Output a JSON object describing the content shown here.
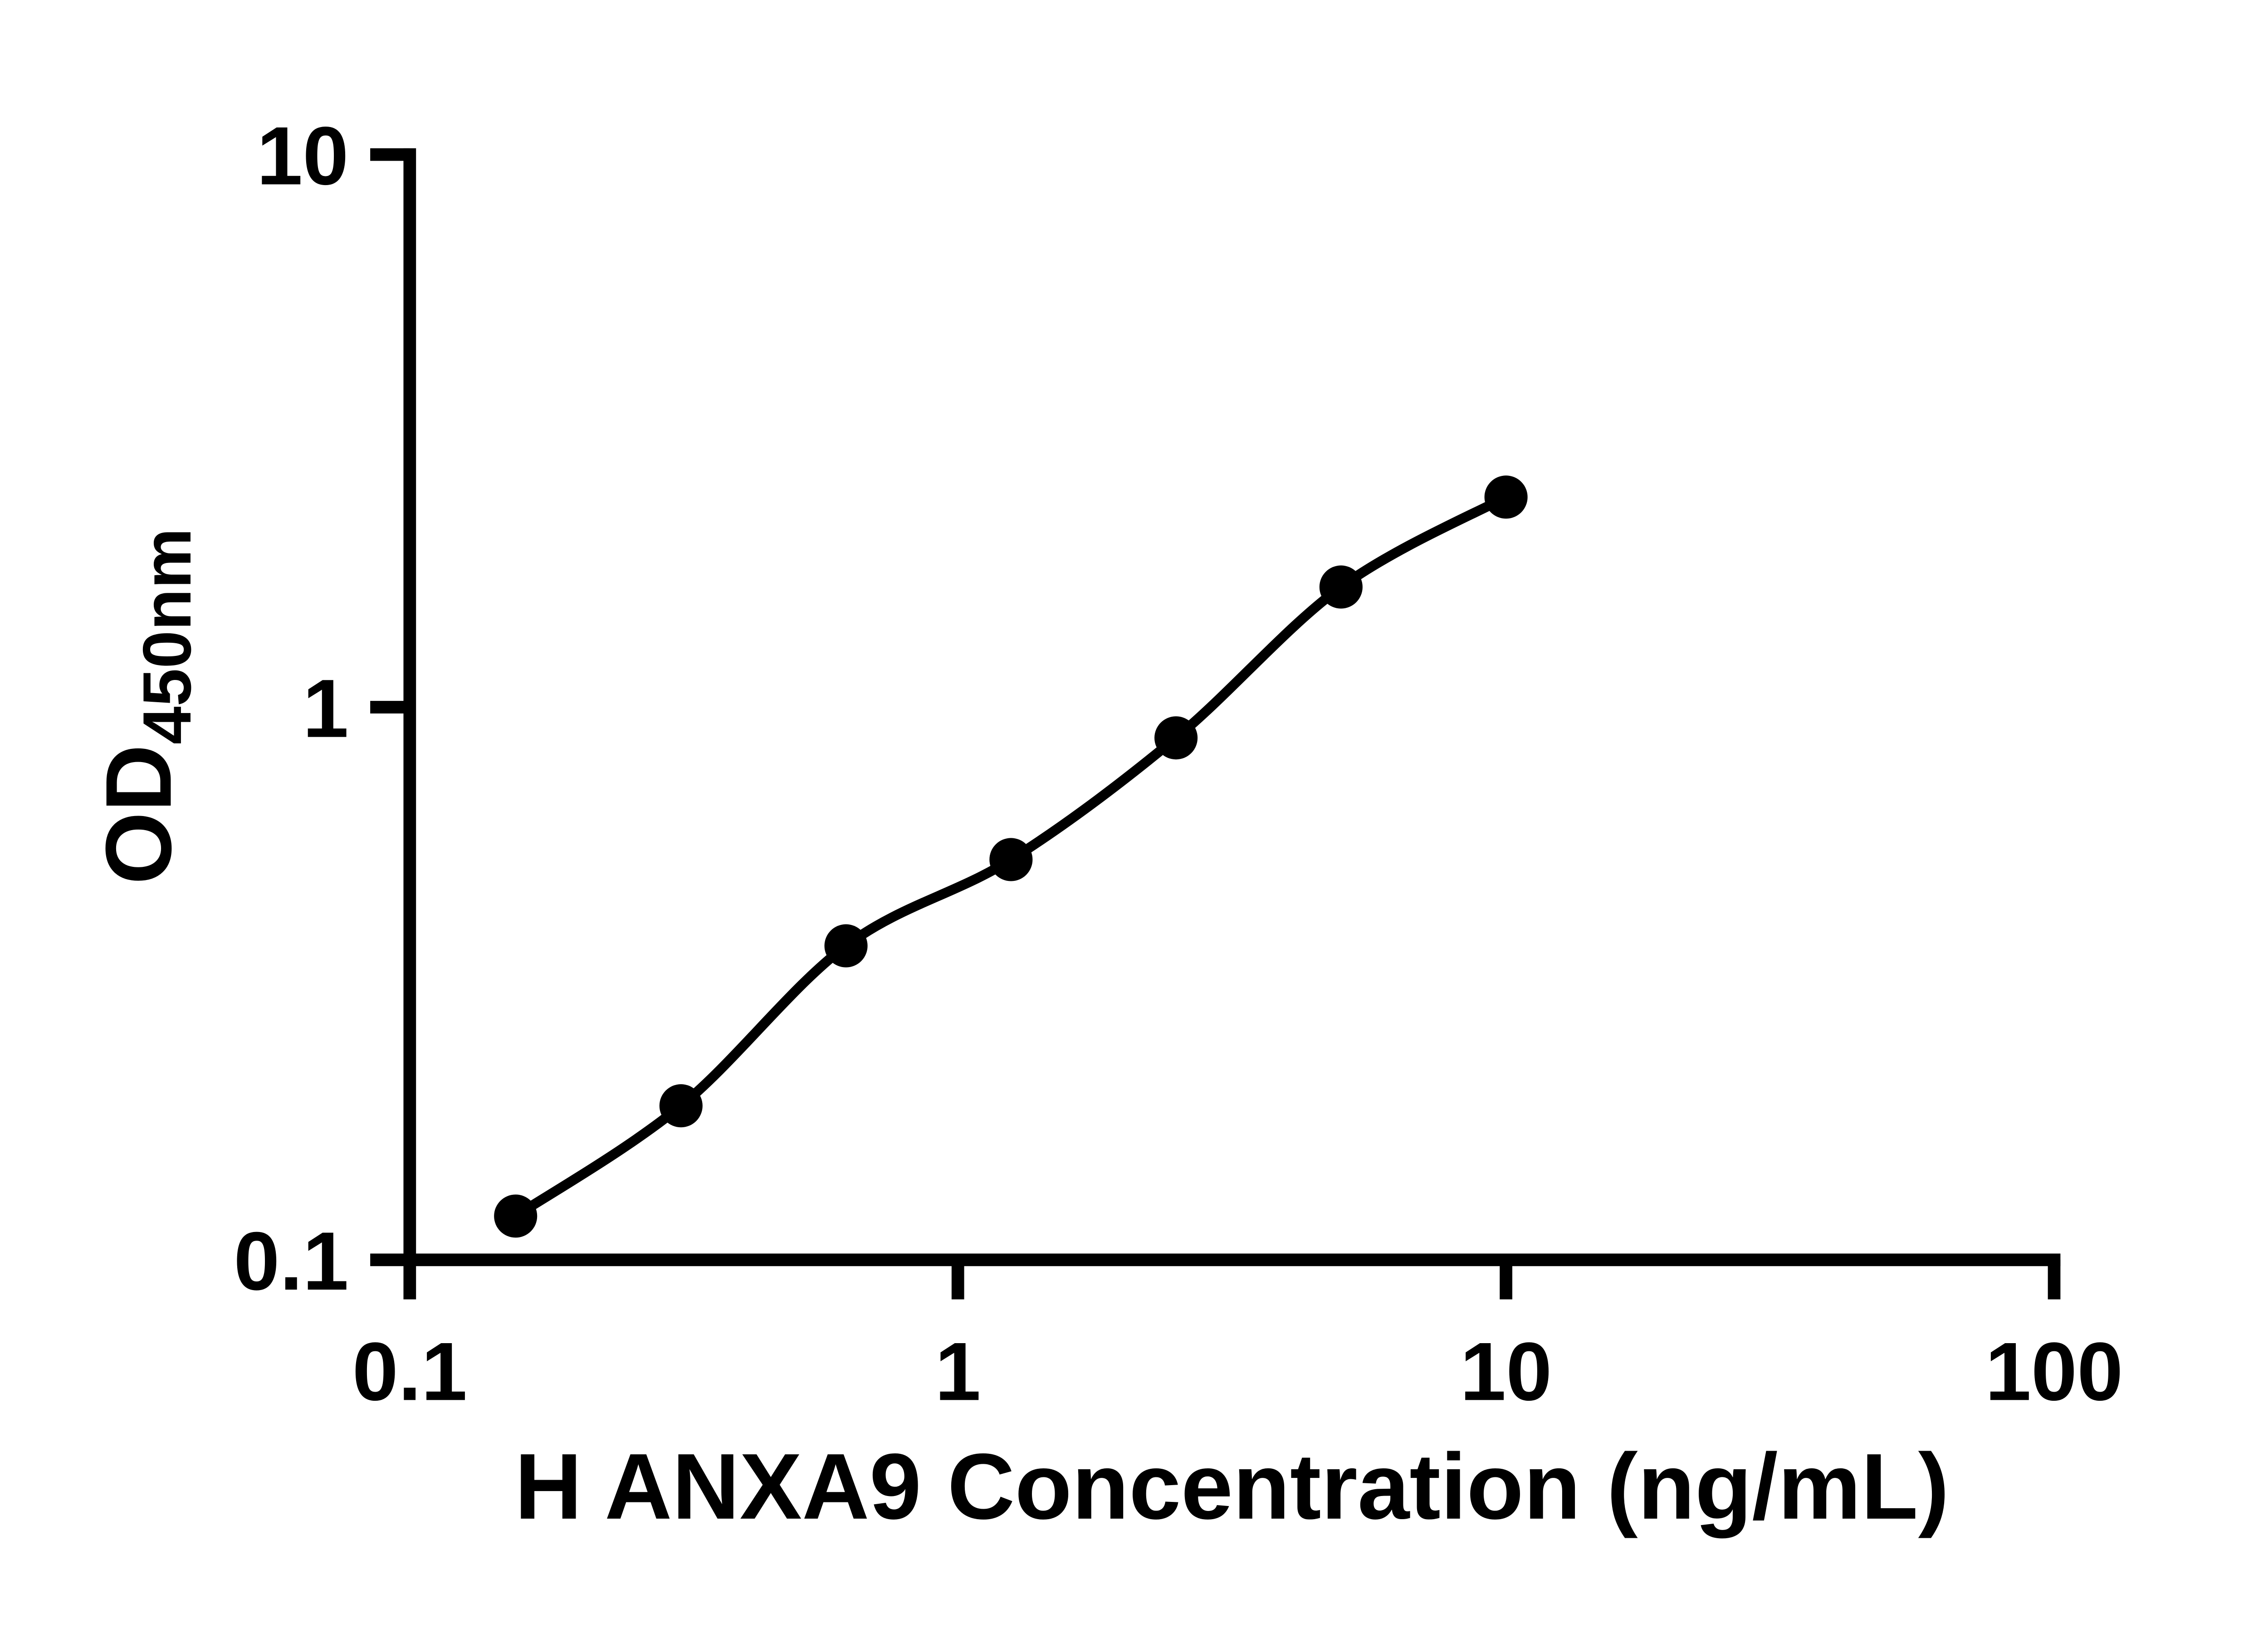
{
  "chart_data": {
    "type": "scatter",
    "title": "",
    "xlabel": "H ANXA9 Concentration (ng/mL)",
    "ylabel_main": "OD",
    "ylabel_sub": "450nm",
    "x_scale": "log",
    "y_scale": "log",
    "xlim": [
      0.1,
      100
    ],
    "ylim": [
      0.1,
      10
    ],
    "x_ticks": [
      0.1,
      1,
      10,
      100
    ],
    "x_tick_labels": [
      "0.1",
      "1",
      "10",
      "100"
    ],
    "y_ticks": [
      0.1,
      1,
      10
    ],
    "y_tick_labels": [
      "0.1",
      "1",
      "10"
    ],
    "grid": "off",
    "legend": "none",
    "points": [
      {
        "x": 0.156,
        "y": 0.12
      },
      {
        "x": 0.3125,
        "y": 0.19
      },
      {
        "x": 0.625,
        "y": 0.37
      },
      {
        "x": 1.25,
        "y": 0.53
      },
      {
        "x": 2.5,
        "y": 0.88
      },
      {
        "x": 5,
        "y": 1.65
      },
      {
        "x": 10,
        "y": 2.4
      }
    ],
    "curve_fit": "smooth through points",
    "marker_color": "#000000",
    "line_color": "#000000",
    "axis_color": "#000000",
    "background_color": "#ffffff"
  }
}
